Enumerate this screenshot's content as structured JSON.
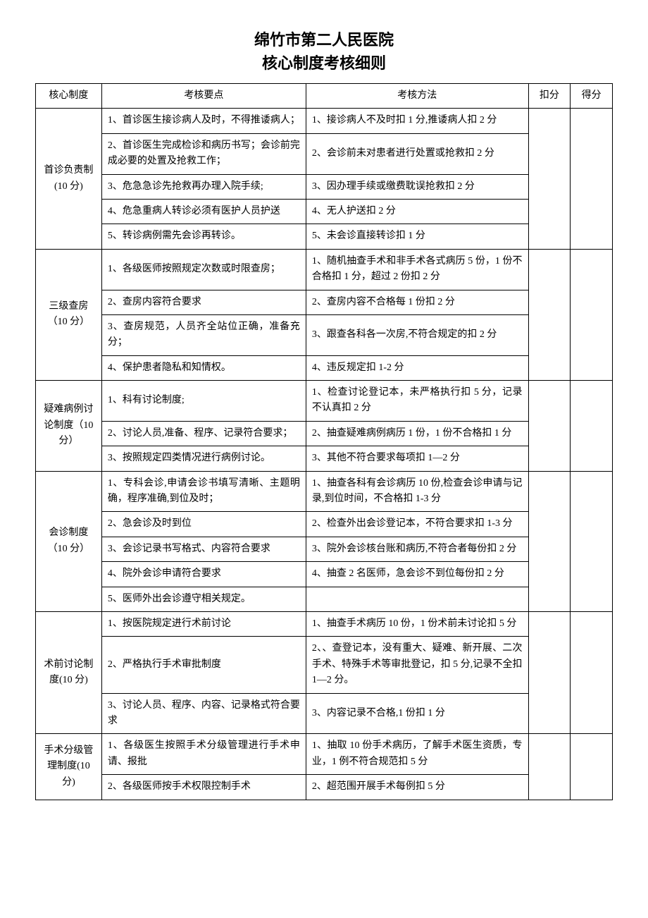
{
  "title_line1": "绵竹市第二人民医院",
  "title_line2": "核心制度考核细则",
  "headers": {
    "c1": "核心制度",
    "c2": "考核要点",
    "c3": "考核方法",
    "c4": "扣分",
    "c5": "得分"
  },
  "sections": [
    {
      "category": "首诊负责制(10 分)",
      "rows": [
        {
          "point": "1、首诊医生接诊病人及时，不得推诿病人；",
          "method": "1、接诊病人不及时扣 1 分,推诿病人扣 2 分"
        },
        {
          "point": "2、首诊医生完成检诊和病历书写；会诊前完成必要的处置及抢救工作；",
          "method": "2、会诊前未对患者进行处置或抢救扣 2 分"
        },
        {
          "point": "3、危急急诊先抢救再办理入院手续;",
          "method": "3、因办理手续或缴费耽误抢救扣 2 分"
        },
        {
          "point": "4、危急重病人转诊必须有医护人员护送",
          "method": "4、无人护送扣 2 分"
        },
        {
          "point": "5、转诊病例需先会诊再转诊。",
          "method": "5、未会诊直接转诊扣 1 分"
        }
      ]
    },
    {
      "category": "三级查房（10 分）",
      "rows": [
        {
          "point": "1、各级医师按照规定次数或时限查房；",
          "method": "1、随机抽查手术和非手术各式病历 5 份，1 份不合格扣 1 分，超过 2 份扣 2 分"
        },
        {
          "point": "2、查房内容符合要求",
          "method": "2、查房内容不合格每 1 份扣 2 分"
        },
        {
          "point": "3、查房规范，人员齐全站位正确，准备充分；",
          "method": "3、跟查各科各一次房,不符合规定的扣 2 分"
        },
        {
          "point": "4、保护患者隐私和知情权。",
          "method": "4、违反规定扣 1-2 分"
        }
      ]
    },
    {
      "category": "疑难病例讨论制度（10 分）",
      "rows": [
        {
          "point": "1、科有讨论制度;",
          "method": "1、检查讨论登记本，未严格执行扣 5 分，记录不认真扣 2 分"
        },
        {
          "point": "2、讨论人员,准备、程序、记录符合要求；",
          "method": "2、抽查疑难病例病历 1 份，1 份不合格扣 1 分"
        },
        {
          "point": "3、按照规定四类情况进行病例讨论。",
          "method": "3、其他不符合要求每项扣 1—2 分"
        }
      ]
    },
    {
      "category": "会诊制度（10 分）",
      "rows": [
        {
          "point": "1、专科会诊,申请会诊书填写清晰、主题明确，程序准确,到位及时；",
          "method": "1、抽查各科有会诊病历 10 份,检查会诊申请与记录,到位时间，不合格扣 1-3 分"
        },
        {
          "point": "2、急会诊及时到位",
          "method": "2、检查外出会诊登记本，不符合要求扣 1-3 分"
        },
        {
          "point": "3、会诊记录书写格式、内容符合要求",
          "method": "3、院外会诊核台账和病历,不符合者每份扣 2 分"
        },
        {
          "point": "4、院外会诊申请符合要求",
          "method": "4、抽查 2 名医师，急会诊不到位每份扣 2 分"
        },
        {
          "point": "5、医师外出会诊遵守相关规定。",
          "method": ""
        }
      ]
    },
    {
      "category": "术前讨论制度(10 分)",
      "rows": [
        {
          "point": "1、按医院规定进行术前讨论",
          "method": "1、抽查手术病历 10 份，1 份术前未讨论扣 5 分"
        },
        {
          "point": "2、严格执行手术审批制度",
          "method": "2、、查登记本，没有重大、疑难、新开展、二次手术、特殊手术等审批登记，扣 5 分,记录不全扣 1—2 分。"
        },
        {
          "point": "3、讨论人员、程序、内容、记录格式符合要求",
          "method": "3、内容记录不合格,1 份扣 1 分"
        }
      ]
    },
    {
      "category": "手术分级管理制度(10 分)",
      "rows": [
        {
          "point": "1、各级医生按照手术分级管理进行手术申请、报批",
          "method": "1、抽取 10 份手术病历，了解手术医生资质，专业，1 例不符合规范扣 5 分"
        },
        {
          "point": "2、各级医师按手术权限控制手术",
          "method": "2、超范围开展手术每例扣 5 分"
        }
      ]
    }
  ]
}
